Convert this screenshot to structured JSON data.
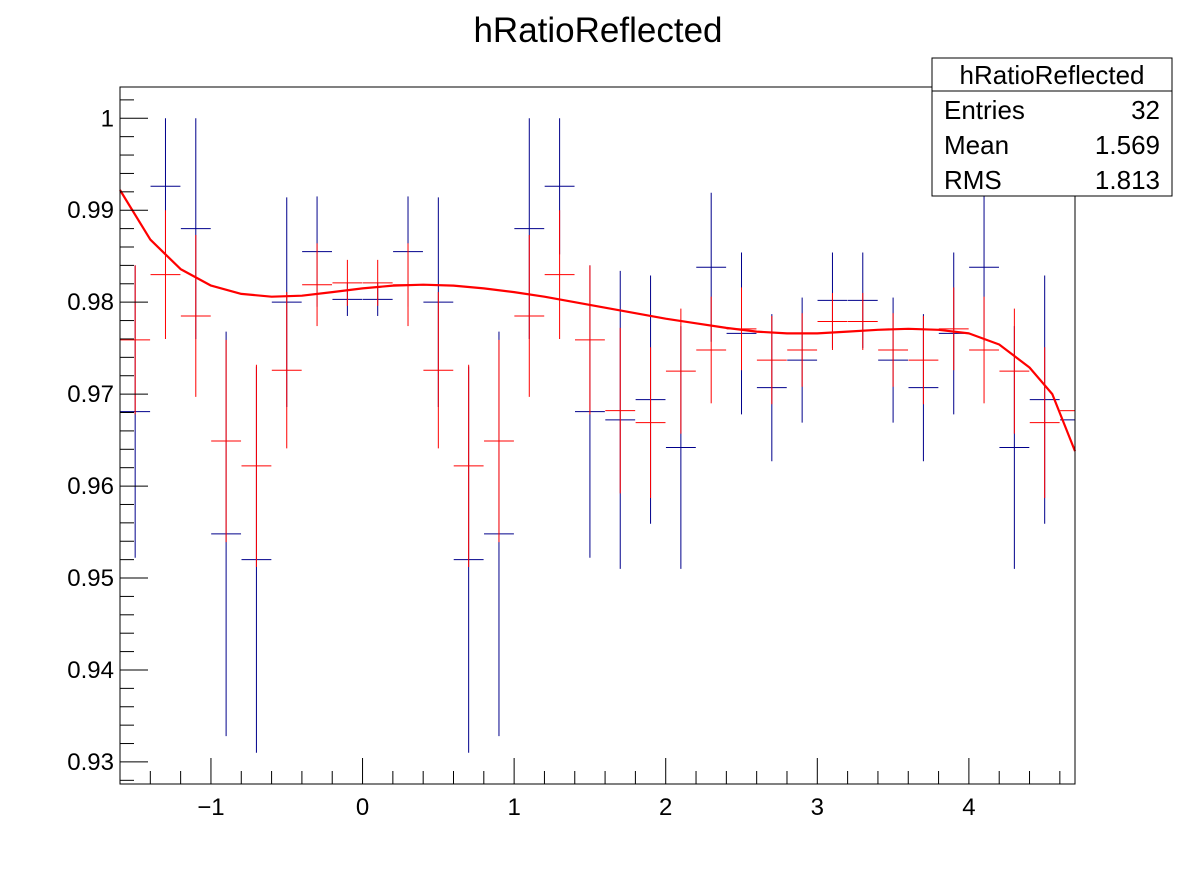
{
  "chart_data": {
    "type": "scatter",
    "title": "hRatioReflected",
    "xlim": [
      -1.6,
      4.7
    ],
    "ylim": [
      0.9276,
      1.0034
    ],
    "x_ticks": [
      -1,
      0,
      1,
      2,
      3,
      4
    ],
    "x_tick_labels": [
      "−1",
      "0",
      "1",
      "2",
      "3",
      "4"
    ],
    "y_ticks": [
      0.93,
      0.94,
      0.95,
      0.96,
      0.97,
      0.98,
      0.99,
      1
    ],
    "y_tick_labels": [
      "0.93",
      "0.94",
      "0.95",
      "0.96",
      "0.97",
      "0.98",
      "0.99",
      "1"
    ],
    "bin_half_width": 0.0985,
    "series": [
      {
        "color": "#00008b",
        "points": [
          {
            "x": -1.5,
            "y": 0.9681,
            "err": 0.0159
          },
          {
            "x": -1.3,
            "y": 0.9926,
            "err": 0.0074
          },
          {
            "x": -1.1,
            "y": 0.988,
            "err": 0.012
          },
          {
            "x": -0.9,
            "y": 0.9548,
            "err": 0.022
          },
          {
            "x": -0.7,
            "y": 0.952,
            "err": 0.021
          },
          {
            "x": -0.5,
            "y": 0.98,
            "err": 0.0114
          },
          {
            "x": -0.3,
            "y": 0.9855,
            "err": 0.006
          },
          {
            "x": -0.1,
            "y": 0.9803,
            "err": 0.0018
          },
          {
            "x": 0.1,
            "y": 0.9803,
            "err": 0.0018
          },
          {
            "x": 0.3,
            "y": 0.9855,
            "err": 0.006
          },
          {
            "x": 0.5,
            "y": 0.98,
            "err": 0.0114
          },
          {
            "x": 0.7,
            "y": 0.952,
            "err": 0.021
          },
          {
            "x": 0.9,
            "y": 0.9548,
            "err": 0.022
          },
          {
            "x": 1.1,
            "y": 0.988,
            "err": 0.012
          },
          {
            "x": 1.3,
            "y": 0.9926,
            "err": 0.0074
          },
          {
            "x": 1.5,
            "y": 0.9681,
            "err": 0.0159
          },
          {
            "x": 1.7,
            "y": 0.9672,
            "err": 0.0162
          },
          {
            "x": 1.9,
            "y": 0.9694,
            "err": 0.0135
          },
          {
            "x": 2.1,
            "y": 0.9642,
            "err": 0.0132
          },
          {
            "x": 2.3,
            "y": 0.9838,
            "err": 0.0081
          },
          {
            "x": 2.5,
            "y": 0.9766,
            "err": 0.0088
          },
          {
            "x": 2.7,
            "y": 0.9707,
            "err": 0.008
          },
          {
            "x": 2.9,
            "y": 0.9737,
            "err": 0.0068
          },
          {
            "x": 3.1,
            "y": 0.9802,
            "err": 0.0052
          },
          {
            "x": 3.3,
            "y": 0.9802,
            "err": 0.0052
          },
          {
            "x": 3.5,
            "y": 0.9737,
            "err": 0.0068
          },
          {
            "x": 3.7,
            "y": 0.9707,
            "err": 0.008
          },
          {
            "x": 3.9,
            "y": 0.9766,
            "err": 0.0088
          },
          {
            "x": 4.1,
            "y": 0.9838,
            "err": 0.0081
          },
          {
            "x": 4.3,
            "y": 0.9642,
            "err": 0.0132
          },
          {
            "x": 4.5,
            "y": 0.9694,
            "err": 0.0135
          },
          {
            "x": 4.7,
            "y": 0.9672,
            "err": 0.0162
          }
        ]
      },
      {
        "color": "#ff0000",
        "points": [
          {
            "x": -1.5,
            "y": 0.9759,
            "err": 0.0081
          },
          {
            "x": -1.3,
            "y": 0.983,
            "err": 0.007
          },
          {
            "x": -1.1,
            "y": 0.9785,
            "err": 0.0088
          },
          {
            "x": -0.9,
            "y": 0.9649,
            "err": 0.011
          },
          {
            "x": -0.7,
            "y": 0.9622,
            "err": 0.011
          },
          {
            "x": -0.5,
            "y": 0.9726,
            "err": 0.0085
          },
          {
            "x": -0.3,
            "y": 0.9819,
            "err": 0.0045
          },
          {
            "x": -0.1,
            "y": 0.9821,
            "err": 0.0025
          },
          {
            "x": 0.1,
            "y": 0.9821,
            "err": 0.0025
          },
          {
            "x": 0.3,
            "y": 0.9819,
            "err": 0.0045
          },
          {
            "x": 0.5,
            "y": 0.9726,
            "err": 0.0085
          },
          {
            "x": 0.7,
            "y": 0.9622,
            "err": 0.011
          },
          {
            "x": 0.9,
            "y": 0.9649,
            "err": 0.011
          },
          {
            "x": 1.1,
            "y": 0.9785,
            "err": 0.0088
          },
          {
            "x": 1.3,
            "y": 0.983,
            "err": 0.007
          },
          {
            "x": 1.5,
            "y": 0.9759,
            "err": 0.0081
          },
          {
            "x": 1.7,
            "y": 0.9682,
            "err": 0.009
          },
          {
            "x": 1.9,
            "y": 0.9669,
            "err": 0.0082
          },
          {
            "x": 2.1,
            "y": 0.9725,
            "err": 0.0068
          },
          {
            "x": 2.3,
            "y": 0.9748,
            "err": 0.0058
          },
          {
            "x": 2.5,
            "y": 0.9771,
            "err": 0.0045
          },
          {
            "x": 2.7,
            "y": 0.9737,
            "err": 0.0048
          },
          {
            "x": 2.9,
            "y": 0.9748,
            "err": 0.004
          },
          {
            "x": 3.1,
            "y": 0.9779,
            "err": 0.0031
          },
          {
            "x": 3.3,
            "y": 0.9779,
            "err": 0.0031
          },
          {
            "x": 3.5,
            "y": 0.9748,
            "err": 0.004
          },
          {
            "x": 3.7,
            "y": 0.9737,
            "err": 0.0048
          },
          {
            "x": 3.9,
            "y": 0.9771,
            "err": 0.0045
          },
          {
            "x": 4.1,
            "y": 0.9748,
            "err": 0.0058
          },
          {
            "x": 4.3,
            "y": 0.9725,
            "err": 0.0068
          },
          {
            "x": 4.5,
            "y": 0.9669,
            "err": 0.0082
          },
          {
            "x": 4.7,
            "y": 0.9682,
            "err": 0.009
          }
        ]
      }
    ],
    "fit_curve": {
      "color": "#ff0000",
      "points": [
        [
          -1.6,
          0.9922
        ],
        [
          -1.4,
          0.9868
        ],
        [
          -1.2,
          0.9836
        ],
        [
          -1.0,
          0.9818
        ],
        [
          -0.8,
          0.9809
        ],
        [
          -0.6,
          0.9806
        ],
        [
          -0.4,
          0.9807
        ],
        [
          -0.2,
          0.9811
        ],
        [
          0.0,
          0.9815
        ],
        [
          0.2,
          0.9818
        ],
        [
          0.4,
          0.9819
        ],
        [
          0.6,
          0.9818
        ],
        [
          0.8,
          0.9815
        ],
        [
          1.0,
          0.9811
        ],
        [
          1.2,
          0.9806
        ],
        [
          1.4,
          0.98
        ],
        [
          1.6,
          0.9794
        ],
        [
          1.8,
          0.9788
        ],
        [
          2.0,
          0.9782
        ],
        [
          2.2,
          0.9777
        ],
        [
          2.4,
          0.9772
        ],
        [
          2.6,
          0.9768
        ],
        [
          2.8,
          0.9766
        ],
        [
          3.0,
          0.9766
        ],
        [
          3.2,
          0.9768
        ],
        [
          3.4,
          0.977
        ],
        [
          3.6,
          0.9771
        ],
        [
          3.8,
          0.977
        ],
        [
          4.0,
          0.9766
        ],
        [
          4.2,
          0.9754
        ],
        [
          4.4,
          0.9729
        ],
        [
          4.55,
          0.97
        ],
        [
          4.7,
          0.9638
        ]
      ]
    }
  },
  "stats_box": {
    "name": "hRatioReflected",
    "rows": [
      {
        "label": "Entries",
        "value": "32"
      },
      {
        "label": "Mean",
        "value": "1.569"
      },
      {
        "label": "RMS",
        "value": "1.813"
      }
    ]
  }
}
